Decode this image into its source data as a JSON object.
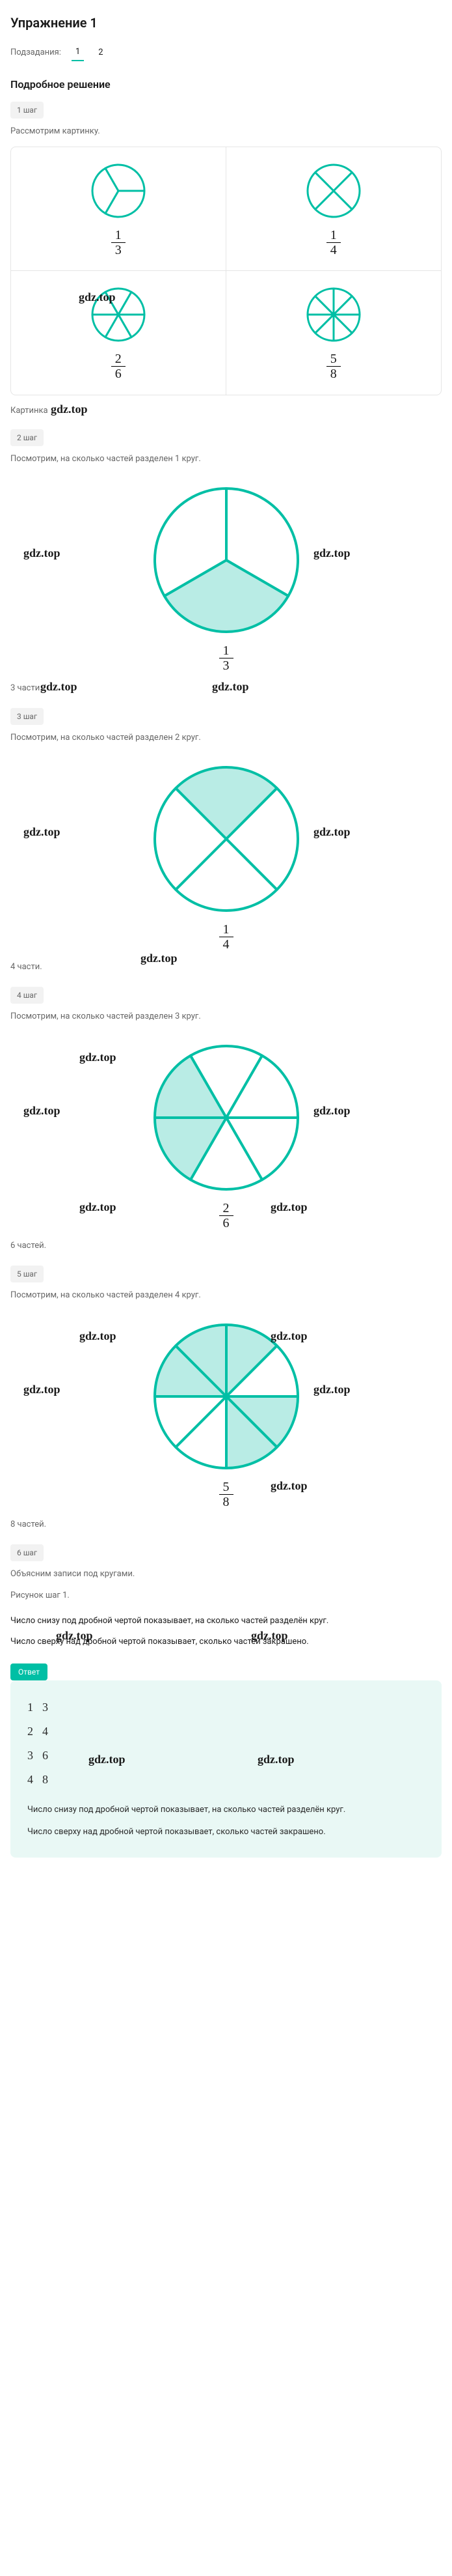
{
  "title": "Упражнение 1",
  "subtasks_label": "Подзадания:",
  "subtasks": [
    "1",
    "2"
  ],
  "active_subtask": 0,
  "solution_heading": "Подробное решение",
  "watermark": "gdz.top",
  "colors": {
    "accent": "#00bfa5",
    "circle_stroke": "#00bfa5",
    "circle_fill": "#b9ece5",
    "answer_bg": "#e9f8f5",
    "grid_border": "#e5e5e5",
    "badge_bg": "#f2f2f2",
    "text_muted": "#666666"
  },
  "steps": [
    {
      "badge": "1 шаг",
      "text": "Рассмотрим картинку.",
      "grid": [
        {
          "parts": 3,
          "shaded": [],
          "num": "1",
          "den": "3",
          "radius": 40
        },
        {
          "parts": 4,
          "shaded": [],
          "num": "1",
          "den": "4",
          "radius": 40,
          "rotate": 45
        },
        {
          "parts": 6,
          "shaded": [],
          "num": "2",
          "den": "6",
          "radius": 40
        },
        {
          "parts": 8,
          "shaded": [],
          "num": "5",
          "den": "8",
          "radius": 40
        }
      ],
      "caption": "Картинка"
    },
    {
      "badge": "2 шаг",
      "text": "Посмотрим, на сколько частей разделен 1 круг.",
      "circle": {
        "parts": 3,
        "shaded": [
          1
        ],
        "num": "1",
        "den": "3",
        "radius": 110,
        "rotate": -90
      },
      "result": "3 части."
    },
    {
      "badge": "3 шаг",
      "text": "Посмотрим, на сколько частей разделен 2 круг.",
      "circle": {
        "parts": 4,
        "shaded": [
          2
        ],
        "num": "1",
        "den": "4",
        "radius": 110,
        "rotate": 45
      },
      "result": "4 части."
    },
    {
      "badge": "4 шаг",
      "text": "Посмотрим, на сколько частей разделен 3 круг.",
      "circle": {
        "parts": 6,
        "shaded": [
          2,
          3
        ],
        "num": "2",
        "den": "6",
        "radius": 110,
        "rotate": 0
      },
      "result": "6 частей."
    },
    {
      "badge": "5 шаг",
      "text": "Посмотрим, на сколько частей разделен 4 круг.",
      "circle": {
        "parts": 8,
        "shaded": [
          0,
          1,
          4,
          5,
          6
        ],
        "num": "5",
        "den": "8",
        "radius": 110,
        "rotate": 0
      },
      "result": "8 частей."
    },
    {
      "badge": "6 шаг",
      "text": "Объясним записи под кругами.",
      "ref": "Рисунок шаг 1.",
      "explain": [
        "Число снизу под дробной чертой показывает, на сколько частей разделён круг.",
        "Число сверху над дробной чертой показывает, сколько частей закрашено."
      ]
    }
  ],
  "answer": {
    "badge": "Ответ",
    "list": [
      {
        "n": "1",
        "v": "3"
      },
      {
        "n": "2",
        "v": "4"
      },
      {
        "n": "3",
        "v": "6"
      },
      {
        "n": "4",
        "v": "8"
      }
    ],
    "text": [
      "Число снизу под дробной чертой показывает, на сколько частей разделён круг.",
      "Число сверху над дробной чертой показывает, сколько частей закрашено."
    ]
  }
}
